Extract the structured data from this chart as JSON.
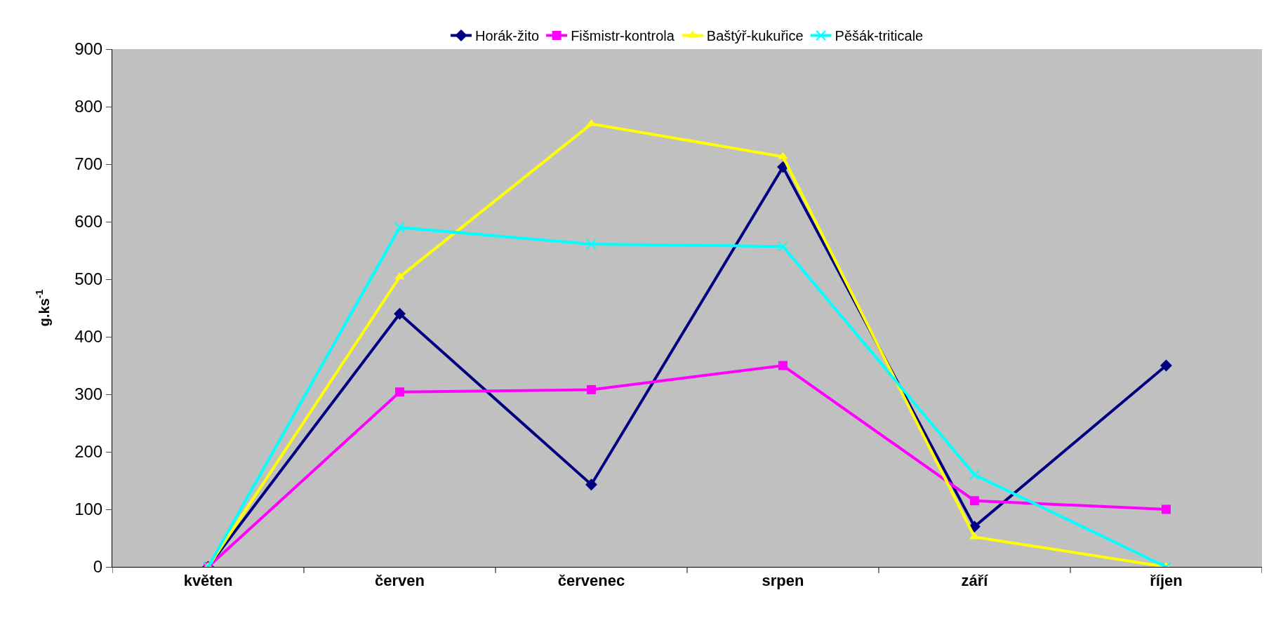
{
  "chart_data": {
    "type": "line",
    "ylabel": "g.ks$^{-1}$",
    "categories": [
      "květen",
      "červen",
      "červenec",
      "srpen",
      "září",
      "říjen"
    ],
    "series": [
      {
        "name": "Horák-žito",
        "color": "#000080",
        "marker": "diamond",
        "values": [
          0,
          440,
          143,
          695,
          70,
          350
        ]
      },
      {
        "name": "Fišmistr-kontrola",
        "color": "#ff00ff",
        "marker": "square",
        "values": [
          0,
          304,
          308,
          350,
          115,
          100
        ]
      },
      {
        "name": "Baštýř-kukuřice",
        "color": "#ffff00",
        "marker": "triangle",
        "values": [
          0,
          504,
          770,
          713,
          52,
          0
        ]
      },
      {
        "name": "Pěšák-triticale",
        "color": "#00ffff",
        "marker": "cross",
        "values": [
          0,
          590,
          561,
          557,
          160,
          0
        ]
      }
    ],
    "ylim": [
      0,
      900
    ],
    "yticks": [
      0,
      100,
      200,
      300,
      400,
      500,
      600,
      700,
      800,
      900
    ],
    "grid": false,
    "legend": "top",
    "line_style": "solid"
  }
}
